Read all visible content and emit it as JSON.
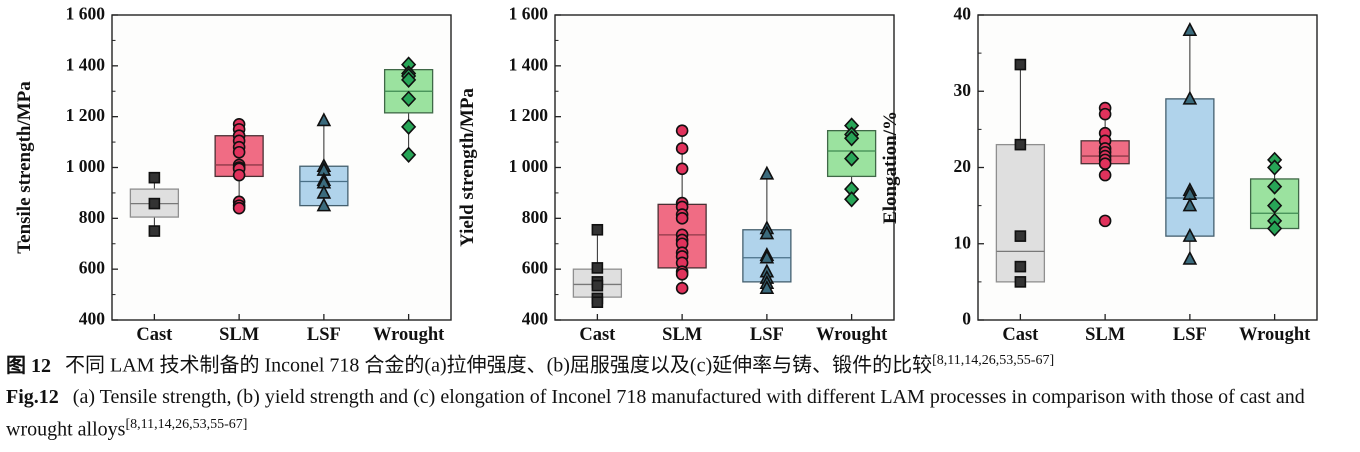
{
  "caption": {
    "zh_label": "图 12",
    "zh_text": "不同 LAM 技术制备的 Inconel 718 合金的(a)拉伸强度、(b)屈服强度以及(c)延伸率与铸、锻件的比较",
    "en_label": "Fig.12",
    "en_text": "(a) Tensile strength, (b) yield strength and (c) elongation of Inconel 718 manufactured with different LAM processes in comparison with those of cast and wrought alloys",
    "ref": "[8,11,14,26,53,55-67]"
  },
  "chart_data": [
    {
      "type": "box",
      "panel": "a",
      "title": "",
      "xlabel": "",
      "ylabel": "Tensile strength/MPa",
      "ylim": [
        400,
        1600
      ],
      "yticks": [
        400,
        600,
        800,
        1000,
        1200,
        1400,
        1600
      ],
      "ytick_labels": [
        "400",
        "600",
        "800",
        "1 000",
        "1 200",
        "1 400",
        "1 600"
      ],
      "minor_yticks": [
        500,
        700,
        900,
        1100,
        1300,
        1500
      ],
      "categories": [
        "Cast",
        "SLM",
        "LSF",
        "Wrought"
      ],
      "grid": false,
      "legend": "none",
      "boxes": [
        {
          "category": "Cast",
          "q1": 805,
          "median": 858,
          "q3": 915,
          "whisker_low": 750,
          "whisker_high": 960,
          "points": [
            960,
            858,
            750
          ],
          "marker": "square",
          "marker_fill": "#333333",
          "box_fill": "#dcdcdc",
          "box_stroke": "#8f8f8f",
          "median_color": "#787878"
        },
        {
          "category": "SLM",
          "q1": 965,
          "median": 1010,
          "q3": 1125,
          "whisker_low": 845,
          "whisker_high": 1170,
          "points": [
            1170,
            1150,
            1125,
            1105,
            1080,
            1060,
            1010,
            1000,
            995,
            970,
            865,
            850,
            840
          ],
          "marker": "circle",
          "marker_fill": "#e0325c",
          "box_fill": "#ef6079",
          "box_stroke": "#4a3034",
          "median_color": "#8c3a48"
        },
        {
          "category": "LSF",
          "q1": 850,
          "median": 945,
          "q3": 1005,
          "whisker_low": 850,
          "whisker_high": 1185,
          "points": [
            1185,
            1005,
            990,
            950,
            940,
            900,
            850
          ],
          "marker": "triangle",
          "marker_fill": "#3b6b7d",
          "box_fill": "#a9cfe9",
          "box_stroke": "#445f6e",
          "median_color": "#4a7087"
        },
        {
          "category": "Wrought",
          "q1": 1215,
          "median": 1300,
          "q3": 1385,
          "whisker_low": 1050,
          "whisker_high": 1405,
          "points": [
            1405,
            1370,
            1360,
            1345,
            1270,
            1160,
            1050
          ],
          "marker": "diamond",
          "marker_fill": "#27a557",
          "box_fill": "#92df97",
          "box_stroke": "#3f6847",
          "median_color": "#3f8a52"
        }
      ]
    },
    {
      "type": "box",
      "panel": "b",
      "title": "",
      "xlabel": "",
      "ylabel": "Yield strength/MPa",
      "ylim": [
        400,
        1600
      ],
      "yticks": [
        400,
        600,
        800,
        1000,
        1200,
        1400,
        1600
      ],
      "ytick_labels": [
        "400",
        "600",
        "800",
        "1 000",
        "1 200",
        "1 400",
        "1 600"
      ],
      "minor_yticks": [
        500,
        700,
        900,
        1100,
        1300,
        1500
      ],
      "categories": [
        "Cast",
        "SLM",
        "LSF",
        "Wrought"
      ],
      "grid": false,
      "legend": "none",
      "boxes": [
        {
          "category": "Cast",
          "q1": 490,
          "median": 540,
          "q3": 600,
          "whisker_low": 470,
          "whisker_high": 755,
          "points": [
            755,
            605,
            550,
            535,
            485,
            470
          ],
          "marker": "square",
          "marker_fill": "#333333",
          "box_fill": "#dcdcdc",
          "box_stroke": "#8f8f8f",
          "median_color": "#787878"
        },
        {
          "category": "SLM",
          "q1": 605,
          "median": 735,
          "q3": 855,
          "whisker_low": 525,
          "whisker_high": 1145,
          "points": [
            1145,
            1075,
            995,
            860,
            845,
            815,
            800,
            735,
            715,
            700,
            665,
            650,
            625,
            590,
            580,
            525
          ],
          "marker": "circle",
          "marker_fill": "#e0325c",
          "box_fill": "#ef6079",
          "box_stroke": "#4a3034",
          "median_color": "#8c3a48"
        },
        {
          "category": "LSF",
          "q1": 550,
          "median": 645,
          "q3": 755,
          "whisker_low": 525,
          "whisker_high": 975,
          "points": [
            975,
            760,
            740,
            655,
            645,
            590,
            565,
            545,
            525
          ],
          "marker": "triangle",
          "marker_fill": "#3b6b7d",
          "box_fill": "#a9cfe9",
          "box_stroke": "#445f6e",
          "median_color": "#4a7087"
        },
        {
          "category": "Wrought",
          "q1": 965,
          "median": 1065,
          "q3": 1145,
          "whisker_low": 875,
          "whisker_high": 1165,
          "points": [
            1165,
            1130,
            1115,
            1035,
            915,
            875
          ],
          "marker": "diamond",
          "marker_fill": "#27a557",
          "box_fill": "#92df97",
          "box_stroke": "#3f6847",
          "median_color": "#3f8a52"
        }
      ]
    },
    {
      "type": "box",
      "panel": "c",
      "title": "",
      "xlabel": "",
      "ylabel": "Elongation/%",
      "ylim": [
        0,
        40
      ],
      "yticks": [
        0,
        10,
        20,
        30,
        40
      ],
      "ytick_labels": [
        "0",
        "10",
        "20",
        "30",
        "40"
      ],
      "minor_yticks": [
        5,
        15,
        25,
        35
      ],
      "categories": [
        "Cast",
        "SLM",
        "LSF",
        "Wrought"
      ],
      "grid": false,
      "legend": "none",
      "boxes": [
        {
          "category": "Cast",
          "q1": 5,
          "median": 9,
          "q3": 23,
          "whisker_low": 5,
          "whisker_high": 33.5,
          "points": [
            33.5,
            23,
            11,
            7,
            5
          ],
          "marker": "square",
          "marker_fill": "#333333",
          "box_fill": "#dcdcdc",
          "box_stroke": "#8f8f8f",
          "median_color": "#787878"
        },
        {
          "category": "SLM",
          "q1": 20.5,
          "median": 21.5,
          "q3": 23.5,
          "whisker_low": 19,
          "whisker_high": 27.8,
          "points": [
            27.8,
            27,
            24.5,
            23.5,
            22.5,
            22,
            21.5,
            21,
            20.5,
            19,
            13
          ],
          "marker": "circle",
          "marker_fill": "#e0325c",
          "box_fill": "#ef6079",
          "box_stroke": "#4a3034",
          "median_color": "#8c3a48"
        },
        {
          "category": "LSF",
          "q1": 11,
          "median": 16,
          "q3": 29,
          "whisker_low": 8,
          "whisker_high": 38,
          "points": [
            38,
            29,
            17,
            16.5,
            15,
            11,
            8
          ],
          "marker": "triangle",
          "marker_fill": "#3b6b7d",
          "box_fill": "#a9cfe9",
          "box_stroke": "#445f6e",
          "median_color": "#4a7087"
        },
        {
          "category": "Wrought",
          "q1": 12,
          "median": 14,
          "q3": 18.5,
          "whisker_low": 12,
          "whisker_high": 21,
          "points": [
            21,
            20,
            17.5,
            15,
            13,
            12
          ],
          "marker": "diamond",
          "marker_fill": "#27a557",
          "box_fill": "#92df97",
          "box_stroke": "#3f6847",
          "median_color": "#3f8a52"
        }
      ]
    }
  ]
}
